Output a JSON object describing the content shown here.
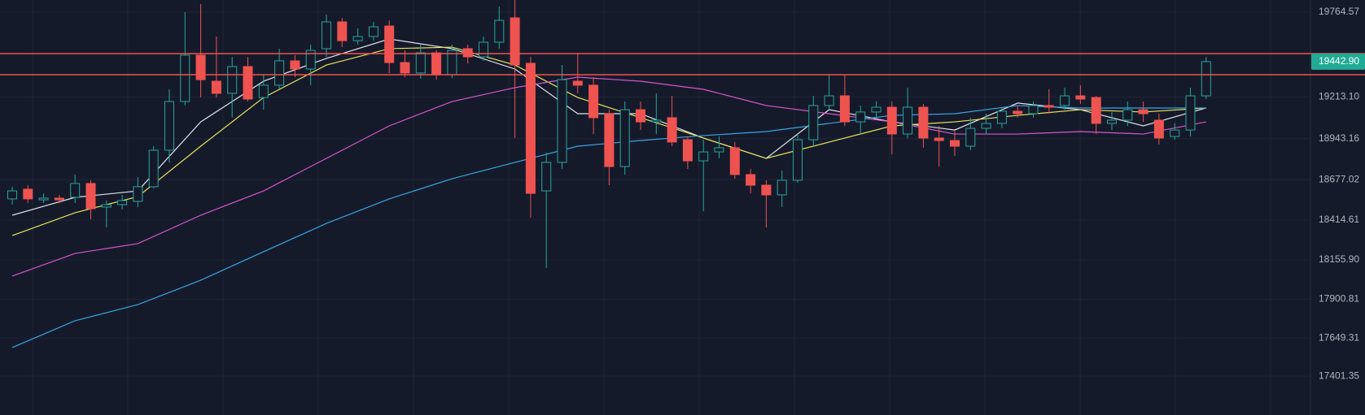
{
  "chart_data": {
    "type": "candlestick",
    "ylim": [
      17260,
      19843
    ],
    "yticks": [
      19764.57,
      {
        "value": 19213.1,
        "label": "19213.10"
      },
      18943.16,
      18677.02,
      18414.61,
      {
        "value": 18155.9,
        "label": "18155.90"
      },
      17900.81,
      17649.31,
      17401.35
    ],
    "grid": true,
    "up_color": "#26a69a",
    "down_color": "#ef5350",
    "open": [
      18552,
      18615,
      18546,
      18557,
      18562,
      18652,
      18499,
      18515,
      18536,
      18631,
      18868,
      19184,
      19485,
      19316,
      19237,
      19411,
      19210,
      19290,
      19448,
      19395,
      19527,
      19701,
      19579,
      19606,
      19674,
      19437,
      19369,
      19500,
      19358,
      19527,
      19474,
      19569,
      19727,
      19432,
      18604,
      18789,
      19316,
      19290,
      19105,
      18762,
      19131,
      19052,
      19079,
      18936,
      18799,
      18857,
      18884,
      18710,
      18641,
      18578,
      18673,
      18936,
      19158,
      19221,
      19052,
      19116,
      19147,
      18973,
      19147,
      18947,
      18931,
      18894,
      19010,
      19042,
      19121,
      19105,
      19158,
      19158,
      19221,
      19210,
      19042,
      19063,
      19131,
      19063,
      18957,
      18999,
      19221
    ],
    "high": [
      18631,
      18641,
      18588,
      18578,
      18710,
      18673,
      18541,
      18578,
      18694,
      18894,
      19263,
      19764,
      19817,
      19606,
      19474,
      19474,
      19358,
      19527,
      19485,
      19553,
      19748,
      19727,
      19659,
      19701,
      19711,
      19516,
      19553,
      19516,
      19553,
      19553,
      19606,
      19801,
      19843,
      19474,
      18852,
      19421,
      19500,
      19342,
      19131,
      19184,
      19184,
      19237,
      19221,
      18957,
      18936,
      18957,
      18921,
      18747,
      18673,
      18736,
      18973,
      19221,
      19358,
      19358,
      19158,
      19184,
      19184,
      19274,
      19168,
      19026,
      18999,
      19079,
      19105,
      19147,
      19158,
      19184,
      19263,
      19274,
      19290,
      19221,
      19116,
      19184,
      19184,
      19105,
      19042,
      19274,
      19474
    ],
    "low": [
      18515,
      18525,
      18525,
      18525,
      18525,
      18420,
      18367,
      18483,
      18499,
      18620,
      18789,
      19158,
      19210,
      19210,
      19079,
      19184,
      19131,
      19263,
      19342,
      19290,
      19474,
      19537,
      19553,
      19579,
      19369,
      19342,
      19332,
      19326,
      19337,
      19432,
      19448,
      19527,
      18947,
      18430,
      18104,
      18747,
      19237,
      18973,
      18641,
      18710,
      18999,
      18973,
      18894,
      18747,
      18472,
      18815,
      18683,
      18588,
      18367,
      18499,
      18657,
      18894,
      19131,
      19026,
      18973,
      19079,
      18841,
      18947,
      18884,
      18762,
      18831,
      18868,
      18973,
      19010,
      19079,
      19079,
      19105,
      19131,
      19168,
      18973,
      18999,
      19026,
      19052,
      18905,
      18936,
      18957,
      19200
    ],
    "close": [
      18604,
      18552,
      18557,
      18546,
      18652,
      18488,
      18515,
      18541,
      18631,
      18868,
      19184,
      19485,
      19326,
      19237,
      19411,
      19200,
      19290,
      19448,
      19395,
      19516,
      19701,
      19579,
      19606,
      19669,
      19437,
      19369,
      19500,
      19358,
      19516,
      19474,
      19569,
      19711,
      19421,
      18588,
      18789,
      19326,
      19290,
      19079,
      18762,
      19131,
      19052,
      19063,
      18921,
      18799,
      18857,
      18884,
      18710,
      18641,
      18578,
      18673,
      18936,
      19158,
      19221,
      19052,
      19116,
      19147,
      18973,
      19147,
      18947,
      18931,
      18894,
      19010,
      19042,
      19121,
      19105,
      19158,
      19147,
      19221,
      19200,
      19042,
      19063,
      19131,
      19105,
      18947,
      18999,
      19221,
      19442.9
    ],
    "ma_x": [
      0,
      4,
      8,
      12,
      16,
      20,
      24,
      28,
      32,
      36,
      40,
      44,
      48,
      52,
      56,
      60,
      64,
      68,
      72,
      76
    ],
    "series": [
      {
        "color": "#e0e3eb",
        "values": [
          18446,
          18562,
          18604,
          19052,
          19316,
          19464,
          19590,
          19527,
          19395,
          19105,
          19105,
          18947,
          18815,
          19131,
          19052,
          18999,
          19174,
          19131,
          19026,
          19142
        ]
      },
      {
        "color": "#e8e35a",
        "values": [
          18314,
          18462,
          18567,
          18894,
          19210,
          19421,
          19527,
          19537,
          19421,
          19210,
          19079,
          18947,
          18815,
          18921,
          19026,
          19052,
          19094,
          19131,
          19116,
          19142
        ]
      },
      {
        "color": "#d856c8",
        "values": [
          18051,
          18198,
          18262,
          18446,
          18604,
          18815,
          19026,
          19184,
          19274,
          19342,
          19316,
          19263,
          19158,
          19105,
          19052,
          18973,
          18973,
          18989,
          18973,
          19052
        ]
      },
      {
        "color": "#3ba3e0",
        "values": [
          17587,
          17761,
          17866,
          18024,
          18209,
          18393,
          18552,
          18683,
          18789,
          18894,
          18931,
          18963,
          18989,
          19042,
          19094,
          19105,
          19158,
          19142,
          19142,
          19142
        ]
      }
    ],
    "hlines": [
      19495,
      19358
    ],
    "hline_color": "#f05350",
    "last_price": {
      "value": 19442.9,
      "label": "19442.90"
    },
    "last_price_color": "#22ab94"
  }
}
